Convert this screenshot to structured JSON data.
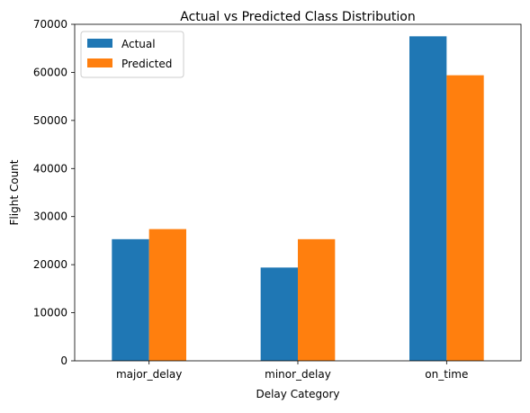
{
  "chart_data": {
    "type": "bar",
    "title": "Actual vs Predicted Class Distribution",
    "xlabel": "Delay Category",
    "ylabel": "Flight Count",
    "categories": [
      "major_delay",
      "minor_delay",
      "on_time"
    ],
    "series": [
      {
        "name": "Actual",
        "values": [
          25300,
          19400,
          67500
        ],
        "color": "#1f77b4"
      },
      {
        "name": "Predicted",
        "values": [
          27400,
          25300,
          59400
        ],
        "color": "#ff7f0e"
      }
    ],
    "ylim": [
      0,
      70000
    ],
    "yticks": [
      0,
      10000,
      20000,
      30000,
      40000,
      50000,
      60000,
      70000
    ],
    "legend": "upper-left",
    "grid": false
  }
}
